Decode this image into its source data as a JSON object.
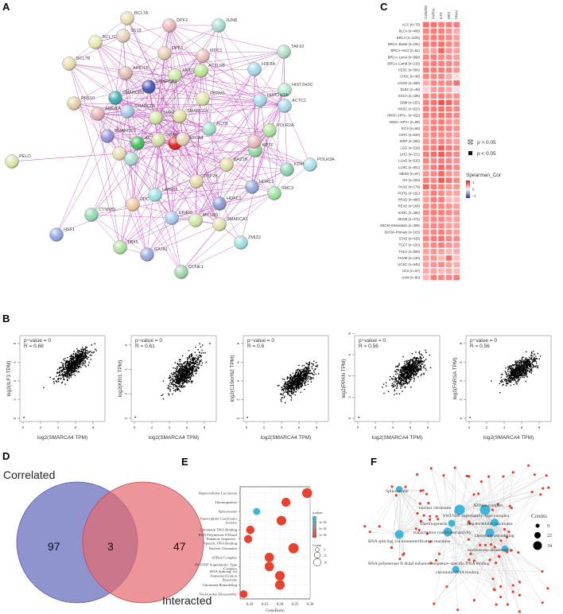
{
  "panels": {
    "a": "A",
    "b": "B",
    "c": "C",
    "d": "D",
    "e": "E",
    "f": "F"
  },
  "network_a": {
    "nodes": [
      "BCL7A",
      "SS18",
      "DPF2",
      "JUNB",
      "BCL7C",
      "DPF3",
      "MDC1",
      "TAF10",
      "BCL7B",
      "ARID1B",
      "ARID2",
      "ACTL6B",
      "H3F3A",
      "SMARCB1",
      "HIST2H3C",
      "SMARCD3",
      "PBRM1",
      "HIST1H3A",
      "ACTC1",
      "PHF10",
      "ARID1A",
      "SMARCD1",
      "SMARCC2",
      "SMARCC1",
      "ACTB",
      "POLR2A",
      "SMARCE1",
      "ACTL6A",
      "SMARCA2",
      "SMARCA4",
      "BPTF",
      "PELO",
      "BAZ1B",
      "KDM6A",
      "POLR3A",
      "TOP2B",
      "HDAC1",
      "SMC3",
      "HMGB1",
      "CDC",
      "HDAC2",
      "CTNNB1",
      "EP400",
      "MYSM1",
      "SMARCA1",
      "HSF1",
      "ZMIZ2",
      "TBX5",
      "GATA1",
      "CCNE1"
    ]
  },
  "chart_data": [
    {
      "type": "heatmap",
      "title": "",
      "columns": [
        "C19orf62",
        "FARSA",
        "ILF3",
        "KRI1",
        "PPAN"
      ],
      "rows": [
        "ACC (n=79)",
        "BLCA (n=408)",
        "BRCA (n=1100)",
        "BRCA–Basal (n=191)",
        "BRCA–Her2 (n=82)",
        "BRCA–LumA (n=568)",
        "BRCA–LumB (n=219)",
        "CESC (n=306)",
        "CHOL (n=36)",
        "COAD (n=458)",
        "DLBC (n=48)",
        "ESCA (n=185)",
        "GBM (n=153)",
        "HNSC (n=522)",
        "HNSC–HPV− (n=422)",
        "HNSC–HPV+ (n=98)",
        "KICH (n=66)",
        "KIRC (n=533)",
        "KIRP (n=290)",
        "LGG (n=516)",
        "LIHC (n=371)",
        "LUAD (n=515)",
        "LUSC (n=501)",
        "MESO (n=87)",
        "OV (n=303)",
        "PAAD (n=179)",
        "PCPG (n=181)",
        "PRAD (n=498)",
        "READ (n=166)",
        "SARC (n=260)",
        "SKCM (n=471)",
        "SKCM–Metastasis (n=368)",
        "SKCM–Primary (n=103)",
        "STAD (n=415)",
        "TGCT (n=150)",
        "THCA (n=509)",
        "THYM (n=120)",
        "UCEC (n=545)",
        "UCS (n=57)",
        "UVM (n=80)"
      ],
      "values": [
        [
          0.6,
          0.6,
          0.55,
          0.55,
          0.55
        ],
        [
          0.5,
          0.55,
          0.55,
          0.45,
          0.35
        ],
        [
          0.5,
          0.55,
          0.55,
          0.5,
          0.4
        ],
        [
          0.55,
          0.55,
          0.6,
          0.5,
          0.45
        ],
        [
          0.4,
          0.4,
          0.65,
          0.45,
          0.4
        ],
        [
          0.5,
          0.55,
          0.5,
          0.45,
          0.4
        ],
        [
          0.5,
          0.55,
          0.55,
          0.5,
          0.45
        ],
        [
          0.55,
          0.55,
          0.55,
          0.5,
          0.45
        ],
        [
          0.5,
          0.5,
          0.5,
          0.35,
          0.1
        ],
        [
          0.35,
          0.5,
          0.5,
          0.5,
          0.6
        ],
        [
          0.15,
          0.4,
          0.45,
          0.35,
          0.1
        ],
        [
          0.5,
          0.5,
          0.55,
          0.45,
          0.45
        ],
        [
          0.55,
          0.6,
          0.75,
          0.65,
          0.5
        ],
        [
          0.55,
          0.55,
          0.6,
          0.55,
          0.5
        ],
        [
          0.55,
          0.55,
          0.6,
          0.55,
          0.5
        ],
        [
          0.4,
          0.5,
          0.55,
          0.45,
          0.4
        ],
        [
          0.45,
          0.55,
          0.55,
          0.5,
          0.45
        ],
        [
          0.45,
          0.5,
          0.5,
          0.45,
          0.4
        ],
        [
          0.45,
          0.5,
          0.5,
          0.45,
          0.4
        ],
        [
          0.5,
          0.55,
          0.7,
          0.55,
          0.5
        ],
        [
          0.55,
          0.6,
          0.7,
          0.55,
          0.5
        ],
        [
          0.5,
          0.5,
          0.55,
          0.5,
          0.45
        ],
        [
          0.45,
          0.55,
          0.65,
          0.55,
          0.5
        ],
        [
          0.45,
          0.5,
          0.65,
          0.45,
          0.4
        ],
        [
          0.55,
          0.5,
          0.7,
          0.6,
          0.5
        ],
        [
          0.65,
          0.55,
          0.55,
          0.45,
          0.45
        ],
        [
          0.4,
          0.55,
          0.5,
          0.4,
          0.4
        ],
        [
          0.4,
          0.55,
          0.55,
          0.3,
          0.3
        ],
        [
          0.45,
          0.5,
          0.5,
          0.45,
          0.4
        ],
        [
          0.5,
          0.55,
          0.55,
          0.5,
          0.45
        ],
        [
          0.45,
          0.5,
          0.5,
          0.4,
          0.4
        ],
        [
          0.45,
          0.5,
          0.5,
          0.4,
          0.4
        ],
        [
          0.45,
          0.5,
          0.55,
          0.45,
          0.4
        ],
        [
          0.5,
          0.55,
          0.6,
          0.5,
          0.5
        ],
        [
          0.45,
          0.5,
          0.55,
          0.45,
          0.4
        ],
        [
          0.4,
          0.45,
          0.4,
          0.3,
          0.35
        ],
        [
          0.4,
          0.45,
          0.3,
          0.6,
          0.25
        ],
        [
          0.4,
          0.45,
          0.5,
          0.4,
          0.35
        ],
        [
          0.35,
          0.4,
          0.3,
          0.35,
          0.3
        ],
        [
          0.3,
          0.55,
          0.5,
          0.5,
          0.55
        ]
      ],
      "not_significant": [
        [
          8,
          4
        ],
        [
          10,
          0
        ],
        [
          10,
          4
        ]
      ],
      "legend": {
        "p_gt": "p > 0.05",
        "p_lt": "p < 0.05",
        "title": "Spearman_Cor",
        "ticks": [
          "1",
          "0",
          "−1"
        ]
      },
      "colors": {
        "high": "#d7191c",
        "mid": "#ffffff",
        "low": "#2c2c8c"
      }
    },
    {
      "type": "scatter",
      "xlabel": "log2(SMARCA4 TPM)",
      "x_ticks": [
        "0",
        "2",
        "4",
        "6",
        "8"
      ],
      "plots": [
        {
          "ylabel": "log2(ILF3 TPM)",
          "pvalue": "p−value = 0",
          "r": "R = 0.68",
          "y_ticks": [
            "0",
            "2",
            "4",
            "6",
            "8"
          ]
        },
        {
          "ylabel": "log2(KRI1 TPM)",
          "pvalue": "p−value = 0",
          "r": "R = 0.61",
          "y_ticks": [
            "0",
            "2",
            "4",
            "6"
          ]
        },
        {
          "ylabel": "log2(C19orf62 TPM)",
          "pvalue": "p−value = 0",
          "r": "R = 0.6",
          "y_ticks": [
            "0",
            "2",
            "4",
            "6",
            "8"
          ]
        },
        {
          "ylabel": "log2(PPAN TPM)",
          "pvalue": "p−value = 0",
          "r": "R = 0.56",
          "y_ticks": [
            "0",
            "2",
            "4",
            "6",
            "8"
          ]
        },
        {
          "ylabel": "log2(FARSA TPM)",
          "pvalue": "p−value = 0",
          "r": "R = 0.56",
          "y_ticks": [
            "0",
            "2",
            "4",
            "6",
            "8"
          ]
        }
      ]
    },
    {
      "type": "venn",
      "sets": [
        {
          "name": "Correlated",
          "only": "97",
          "color": "#7b80c6"
        },
        {
          "name": "Interacted",
          "only": "47",
          "color": "#e46a6e"
        }
      ],
      "intersection": "3"
    },
    {
      "type": "scatter",
      "subtype": "dotplot",
      "xlabel": "GeneRatio",
      "x_ticks": [
        "0.10",
        "0.15",
        "0.20",
        "0.25",
        "0.30"
      ],
      "xlim": [
        0.07,
        0.3
      ],
      "categories": [
        "Hepatocellular Carcinoma",
        "Thermogenesis",
        "Spliceosome",
        "Transcription Coactivator Activity",
        "Chromatin DNA Binding",
        "RNA Polymerase II Distal Enhancer Sequence–Specific DNA Binding",
        "Nuclear Chromatin",
        "ATPase Complex",
        "SWI/SNF Superfamily–Type Complex",
        "RNA Splicing, via Transesterification Reactions",
        "Chromatin Remodeling",
        "Nucleosome Disassembly"
      ],
      "gene_ratio": [
        0.29,
        0.22,
        0.123,
        0.205,
        0.102,
        0.095,
        0.245,
        0.165,
        0.165,
        0.2,
        0.2,
        0.08
      ],
      "counts": [
        24,
        18,
        9,
        22,
        15,
        14,
        26,
        20,
        20,
        22,
        22,
        12
      ],
      "p_adjust_high": [
        false,
        false,
        true,
        false,
        false,
        false,
        false,
        false,
        false,
        false,
        false,
        false
      ],
      "legend": {
        "color_title": "p.adjust",
        "color_ticks": [
          "3e−04",
          "2e−04",
          "1e−04"
        ],
        "size_title": "Counts",
        "size_ticks": [
          "9",
          "22",
          "34"
        ]
      },
      "colors": {
        "low_p": "#e8412f",
        "high_p": "#3ab7d6"
      }
    },
    {
      "type": "network",
      "terms": [
        "Spliceosome",
        "nuclear chromatin",
        "ATPase complex",
        "SWI/SNF superfamily–type complex",
        "Thermogenesis",
        "Hepatocellular carcinoma",
        "transcription coactivator activity",
        "chromatin remodeling",
        "RNA splicing, via transesterification reactions",
        "nucleosome disassembly",
        "RNA polymerase II distal enhancer sequence–specific DNA binding",
        "chromatin DNA binding"
      ],
      "legend": {
        "title": "Counts",
        "ticks": [
          "9",
          "22",
          "34"
        ]
      },
      "colors": {
        "term": "#3fb6d9",
        "gene": "#e8412f",
        "edge": "#cccccc"
      }
    }
  ]
}
